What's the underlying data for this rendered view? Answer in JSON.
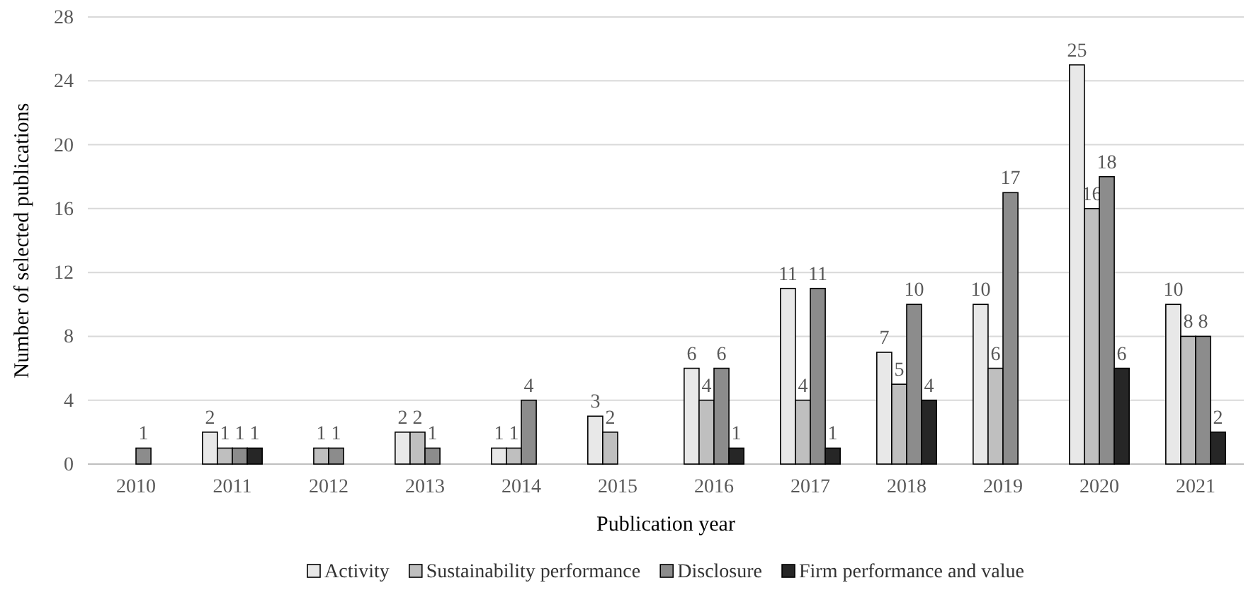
{
  "chart_data": {
    "type": "bar",
    "xlabel": "Publication year",
    "ylabel": "Number of selected publications",
    "categories": [
      "2010",
      "2011",
      "2012",
      "2013",
      "2014",
      "2015",
      "2016",
      "2017",
      "2018",
      "2019",
      "2020",
      "2021"
    ],
    "series": [
      {
        "name": "Activity",
        "color": "#e8e8e8",
        "values": [
          0,
          2,
          0,
          2,
          1,
          3,
          6,
          11,
          7,
          10,
          25,
          10
        ],
        "value_labels": [
          null,
          "2",
          null,
          "2",
          "1",
          "3",
          "6",
          "11",
          "7",
          "10",
          "25",
          "10"
        ]
      },
      {
        "name": "Sustainability performance",
        "color": "#bfbfbf",
        "values": [
          0,
          1,
          1,
          2,
          1,
          2,
          4,
          4,
          5,
          6,
          16,
          8
        ],
        "value_labels": [
          null,
          "1",
          "1",
          "2",
          "1",
          "2",
          "4",
          "4",
          "5",
          "6",
          "16",
          "8"
        ]
      },
      {
        "name": "Disclosure",
        "color": "#8c8c8c",
        "values": [
          1,
          1,
          1,
          1,
          4,
          0,
          6,
          11,
          10,
          17,
          18,
          8
        ],
        "value_labels": [
          "1",
          "1",
          "1",
          "1",
          "4",
          null,
          "6",
          "11",
          "10",
          "17",
          "18",
          "8"
        ]
      },
      {
        "name": "Firm performance and value",
        "color": "#262626",
        "values": [
          0,
          1,
          0,
          0,
          0,
          0,
          1,
          1,
          4,
          0,
          6,
          2
        ],
        "value_labels": [
          null,
          "1",
          null,
          null,
          null,
          null,
          "1",
          "1",
          "4",
          null,
          "6",
          "2"
        ]
      }
    ],
    "ylim": [
      0,
      28
    ],
    "yticks": [
      0,
      4,
      8,
      12,
      16,
      20,
      24,
      28
    ],
    "grid": "y",
    "legend": "bottom"
  }
}
